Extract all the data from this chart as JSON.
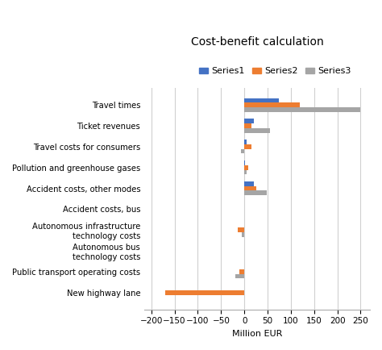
{
  "title": "Cost-benefit calculation",
  "xlabel": "Million EUR",
  "categories": [
    "New highway lane",
    "Public transport operating costs",
    "Autonomous bus\ntechnology costs",
    "Autonomous infrastructure\ntechnology costs",
    "Accident costs, bus",
    "Accident costs, other modes",
    "Pollution and greenhouse gases",
    "Travel costs for consumers",
    "Ticket revenues",
    "Travel times"
  ],
  "series1": [
    0,
    0,
    0,
    0,
    0,
    20,
    2,
    5,
    20,
    75
  ],
  "series2": [
    -170,
    -10,
    0,
    -15,
    0,
    25,
    8,
    15,
    15,
    120
  ],
  "series3": [
    0,
    -20,
    0,
    -5,
    0,
    48,
    5,
    -8,
    55,
    250
  ],
  "series1_color": "#4472C4",
  "series2_color": "#ED7D31",
  "series3_color": "#A5A5A5",
  "series1_label": "Series1",
  "series2_label": "Series2",
  "series3_label": "Series3",
  "xlim": [
    -215,
    270
  ],
  "xticks": [
    -200,
    -150,
    -100,
    -50,
    0,
    50,
    100,
    150,
    200,
    250
  ],
  "background_color": "#FFFFFF",
  "grid_color": "#D0D0D0",
  "bar_height": 0.22
}
